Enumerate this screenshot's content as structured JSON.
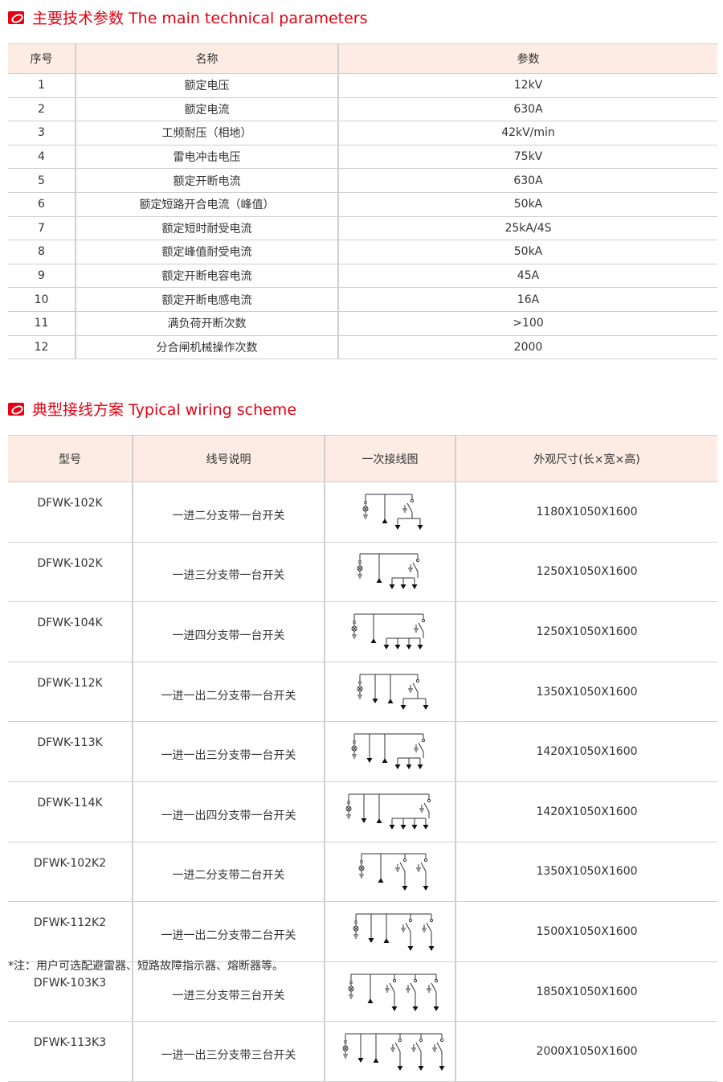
{
  "colors": {
    "accent": "#e60012",
    "header_bg": "#fdece4"
  },
  "section1": {
    "icon": "section-badge-icon",
    "title": "主要技术参数 The main technical parameters",
    "headers": [
      "序号",
      "名称",
      "参数"
    ],
    "rows": [
      [
        "1",
        "额定电压",
        "12kV"
      ],
      [
        "2",
        "额定电流",
        "630A"
      ],
      [
        "3",
        "工频耐压（相地）",
        "42kV/min"
      ],
      [
        "4",
        "雷电冲击电压",
        "75kV"
      ],
      [
        "5",
        "额定开断电流",
        "630A"
      ],
      [
        "6",
        "额定短路开合电流（峰值）",
        "50kA"
      ],
      [
        "7",
        "额定短时耐受电流",
        "25kA/4S"
      ],
      [
        "8",
        "额定峰值耐受电流",
        "50kA"
      ],
      [
        "9",
        "额定开断电容电流",
        "45A"
      ],
      [
        "10",
        "额定开断电感电流",
        "16A"
      ],
      [
        "11",
        "满负荷开断次数",
        ">100"
      ],
      [
        "12",
        "分合闸机械操作次数",
        "2000"
      ]
    ]
  },
  "section2": {
    "icon": "section-badge-icon",
    "title": "典型接线方案 Typical wiring scheme",
    "headers": [
      "型号",
      "线号说明",
      "一次接线图",
      "外观尺寸(长×宽×高)"
    ],
    "rows": [
      {
        "model": "DFWK-102K",
        "desc": "一进二分支带一台开关",
        "diagram": [
          "pt",
          "in",
          "branch2"
        ],
        "size": "1180X1050X1600"
      },
      {
        "model": "DFWK-102K",
        "desc": "一进三分支带一台开关",
        "diagram": [
          "pt",
          "in",
          "branch3"
        ],
        "size": "1250X1050X1600"
      },
      {
        "model": "DFWK-104K",
        "desc": "一进四分支带一台开关",
        "diagram": [
          "pt",
          "in",
          "branch4"
        ],
        "size": "1250X1050X1600"
      },
      {
        "model": "DFWK-112K",
        "desc": "一进一出二分支带一台开关",
        "diagram": [
          "pt",
          "out",
          "in",
          "branch2"
        ],
        "size": "1350X1050X1600"
      },
      {
        "model": "DFWK-113K",
        "desc": "一进一出三分支带一台开关",
        "diagram": [
          "pt",
          "out",
          "in",
          "branch3"
        ],
        "size": "1420X1050X1600"
      },
      {
        "model": "DFWK-114K",
        "desc": "一进一出四分支带一台开关",
        "diagram": [
          "pt",
          "out",
          "in",
          "branch4"
        ],
        "size": "1420X1050X1600"
      },
      {
        "model": "DFWK-102K2",
        "desc": "一进二分支带二台开关",
        "diagram": [
          "pt",
          "in",
          "switch",
          "switch"
        ],
        "size": "1350X1050X1600"
      },
      {
        "model": "DFWK-112K2",
        "desc": "一进一出二分支带二台开关",
        "diagram": [
          "pt",
          "out",
          "in",
          "switch",
          "switch"
        ],
        "size": "1500X1050X1600"
      },
      {
        "model": "DFWK-103K3",
        "desc": "一进三分支带三台开关",
        "diagram": [
          "pt",
          "in",
          "switch",
          "switch",
          "switch"
        ],
        "size": "1850X1050X1600"
      },
      {
        "model": "DFWK-113K3",
        "desc": "一进一出三分支带三台开关",
        "diagram": [
          "pt",
          "out",
          "in",
          "switch",
          "switch",
          "switch"
        ],
        "size": "2000X1050X1600"
      }
    ]
  },
  "footnote": "*注：用户可选配避雷器、短路故障指示器、熔断器等。"
}
